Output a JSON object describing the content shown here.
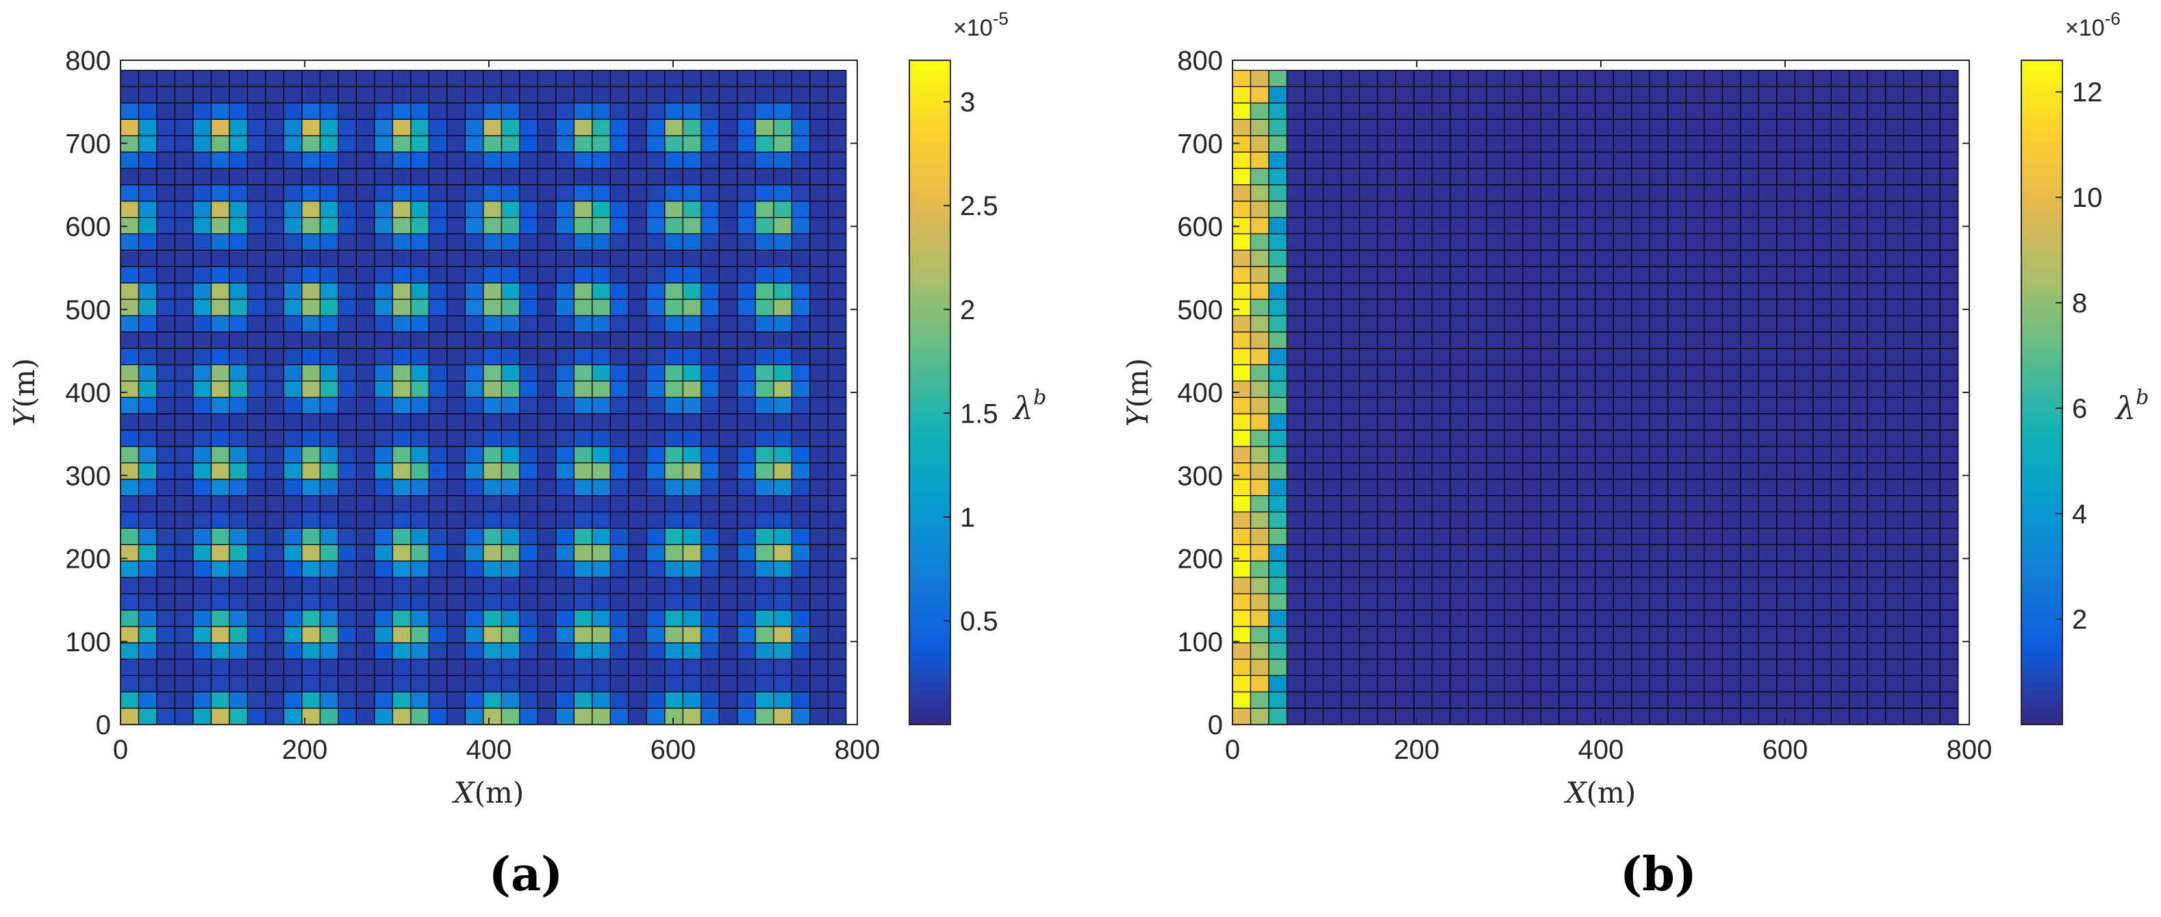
{
  "chart_data": [
    {
      "type": "heatmap",
      "panel_label": "(a)",
      "xlabel_var": "X",
      "xlabel_unit": "(m)",
      "ylabel_var": "Y",
      "ylabel_unit": "(m)",
      "xlim": [
        0,
        800
      ],
      "ylim": [
        0,
        800
      ],
      "xticks": [
        "0",
        "200",
        "400",
        "600",
        "800"
      ],
      "yticks": [
        "0",
        "100",
        "200",
        "300",
        "400",
        "500",
        "600",
        "700",
        "800"
      ],
      "grid_cells": 40,
      "cell_size_m": 19.7,
      "colorbar": {
        "label_base": "λ",
        "label_sup": "b",
        "exponent_base": "×10",
        "exponent_power": "-5",
        "ticks": [
          "0.5",
          "1",
          "1.5",
          "2",
          "2.5",
          "3"
        ],
        "min": 0.0,
        "max": 3.2
      },
      "pattern": "Periodic hotspots centred at x,y ∈ {10,110,210,310,410,510,610,710} m with peak ≈3.1×10^-5, decaying to ≈0.1×10^-5 background",
      "hotspot_centers_m": [
        10,
        110,
        210,
        310,
        410,
        510,
        610,
        710
      ],
      "peak_value": 3.1,
      "background_value": 0.1
    },
    {
      "type": "heatmap",
      "panel_label": "(b)",
      "xlabel_var": "X",
      "xlabel_unit": "(m)",
      "ylabel_var": "Y",
      "ylabel_unit": "(m)",
      "xlim": [
        0,
        800
      ],
      "ylim": [
        0,
        800
      ],
      "xticks": [
        "0",
        "200",
        "400",
        "600",
        "800"
      ],
      "yticks": [
        "0",
        "100",
        "200",
        "300",
        "400",
        "500",
        "600",
        "700",
        "800"
      ],
      "grid_cells": 40,
      "cell_size_m": 19.7,
      "colorbar": {
        "label_base": "λ",
        "label_sup": "b",
        "exponent_base": "×10",
        "exponent_power": "-6",
        "ticks": [
          "2",
          "4",
          "6",
          "8",
          "10",
          "12"
        ],
        "min": 0.0,
        "max": 12.6
      },
      "pattern": "High values (≈6–12.5×10^-6) only in the first three columns (x < 60 m), background ≈0.2×10^-6 elsewhere",
      "hot_columns": 3,
      "peak_value": 12.5,
      "background_value": 0.2
    }
  ]
}
